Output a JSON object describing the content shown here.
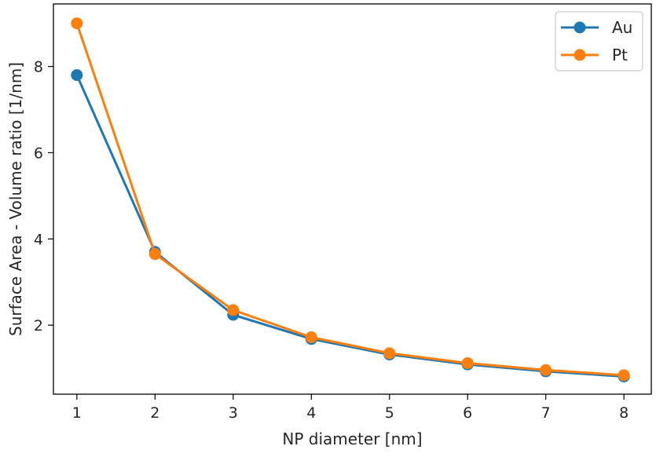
{
  "chart_data": {
    "type": "line",
    "title": "",
    "xlabel": "NP diameter [nm]",
    "ylabel": "Surface Area - Volume ratio [1/nm]",
    "x": [
      1,
      2,
      3,
      4,
      5,
      6,
      7,
      8
    ],
    "xticks": [
      "1",
      "2",
      "3",
      "4",
      "5",
      "6",
      "7",
      "8"
    ],
    "yticks": [
      "2",
      "4",
      "6",
      "8"
    ],
    "xlim": [
      0.7,
      8.35
    ],
    "ylim": [
      0.4,
      9.45
    ],
    "grid": false,
    "legend_position": "top-right",
    "series": [
      {
        "name": "Au",
        "color": "#1f77b4",
        "marker": "circle",
        "values": [
          7.8,
          3.7,
          2.24,
          1.68,
          1.32,
          1.09,
          0.93,
          0.81
        ]
      },
      {
        "name": "Pt",
        "color": "#ff7f0e",
        "marker": "circle",
        "values": [
          9.0,
          3.65,
          2.35,
          1.72,
          1.35,
          1.12,
          0.96,
          0.84
        ]
      }
    ]
  }
}
